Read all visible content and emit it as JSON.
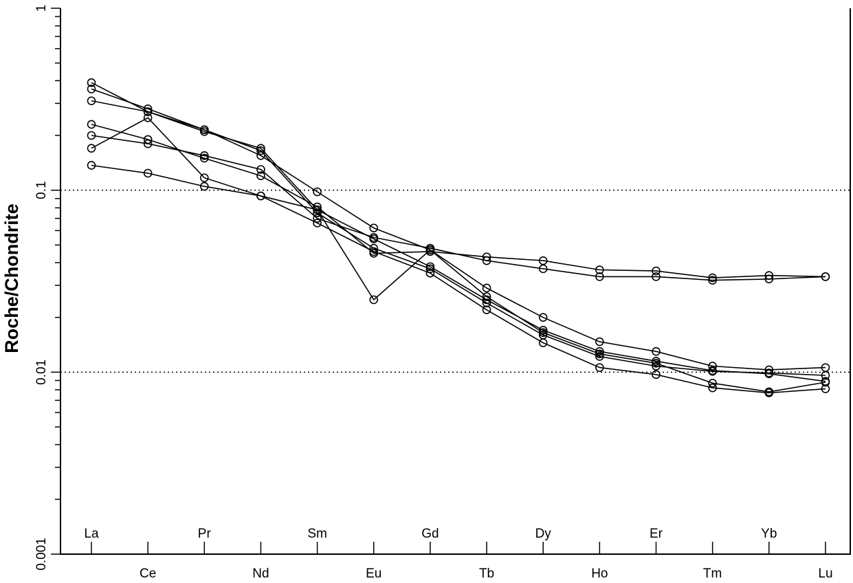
{
  "chart_data": {
    "type": "line",
    "ylabel": "Roche/Chondrite",
    "xlabel": "",
    "title": "",
    "yscale": "log",
    "ylim": [
      0.001,
      1
    ],
    "y_tick_labels": [
      "1",
      "0.1",
      "0.01",
      "0.001"
    ],
    "reference_lines": [
      0.1,
      0.01
    ],
    "grid": false,
    "legend": "none",
    "categories": [
      "La",
      "Ce",
      "Pr",
      "Nd",
      "Sm",
      "Eu",
      "Gd",
      "Tb",
      "Dy",
      "Ho",
      "Er",
      "Tm",
      "Yb",
      "Lu"
    ],
    "upper_row_labels": [
      "La",
      "Pr",
      "Sm",
      "Gd",
      "Dy",
      "Er",
      "Yb"
    ],
    "lower_row_labels": [
      "Ce",
      "Nd",
      "Eu",
      "Tb",
      "Ho",
      "Tm",
      "Lu"
    ],
    "series": [
      {
        "values": [
          0.39,
          0.27,
          0.21,
          0.17,
          0.078,
          0.054,
          0.038,
          0.025,
          0.017,
          0.013,
          0.0115,
          0.0102,
          0.0098,
          0.0089
        ]
      },
      {
        "values": [
          0.36,
          0.28,
          0.215,
          0.165,
          0.075,
          0.048,
          0.037,
          0.024,
          0.016,
          0.0122,
          0.0108,
          0.0101,
          0.0099,
          0.0096
        ]
      },
      {
        "values": [
          0.31,
          0.27,
          0.215,
          0.155,
          0.098,
          0.062,
          0.047,
          0.029,
          0.02,
          0.0147,
          0.013,
          0.0108,
          0.0103,
          0.0106
        ]
      },
      {
        "values": [
          0.23,
          0.19,
          0.15,
          0.12,
          0.081,
          0.045,
          0.046,
          0.043,
          0.041,
          0.0365,
          0.036,
          0.033,
          0.034,
          0.0335
        ]
      },
      {
        "values": [
          0.2,
          0.18,
          0.155,
          0.13,
          0.07,
          0.055,
          0.048,
          0.041,
          0.037,
          0.0335,
          0.0335,
          0.032,
          0.0325,
          0.0335
        ]
      },
      {
        "values": [
          0.17,
          0.25,
          0.117,
          0.093,
          0.078,
          0.025,
          0.047,
          0.026,
          0.0165,
          0.0126,
          0.0112,
          0.0087,
          0.0078,
          0.0088
        ]
      },
      {
        "values": [
          0.137,
          0.124,
          0.105,
          0.093,
          0.066,
          0.046,
          0.035,
          0.022,
          0.0145,
          0.0106,
          0.0097,
          0.0082,
          0.0077,
          0.0081
        ]
      }
    ]
  }
}
